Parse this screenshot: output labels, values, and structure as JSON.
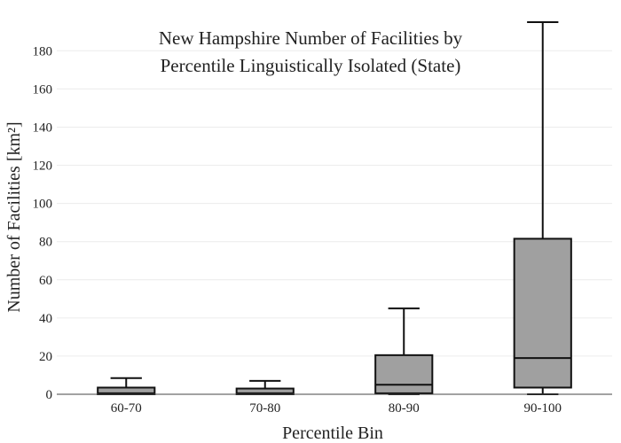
{
  "chart_data": {
    "type": "box",
    "title_lines": [
      "New Hampshire Number of Facilities by",
      "Percentile Linguistically Isolated (State)"
    ],
    "xlabel": "Percentile Bin",
    "ylabel": "Number of Facilities  [km²]",
    "ylim": [
      0,
      195
    ],
    "yticks": [
      0,
      20,
      40,
      60,
      80,
      100,
      120,
      140,
      160,
      180
    ],
    "grid": true,
    "categories": [
      "60-70",
      "70-80",
      "80-90",
      "90-100"
    ],
    "boxes": [
      {
        "category": "60-70",
        "min": 0,
        "q1": 0,
        "median": 0.5,
        "q3": 3.5,
        "max": 8.5
      },
      {
        "category": "70-80",
        "min": 0,
        "q1": 0,
        "median": 0.5,
        "q3": 3,
        "max": 7
      },
      {
        "category": "80-90",
        "min": 0,
        "q1": 0.5,
        "median": 5,
        "q3": 20.5,
        "max": 45
      },
      {
        "category": "90-100",
        "min": 0,
        "q1": 3.5,
        "median": 19,
        "q3": 81.5,
        "max": 195
      }
    ],
    "box_color": "#a0a0a0"
  }
}
